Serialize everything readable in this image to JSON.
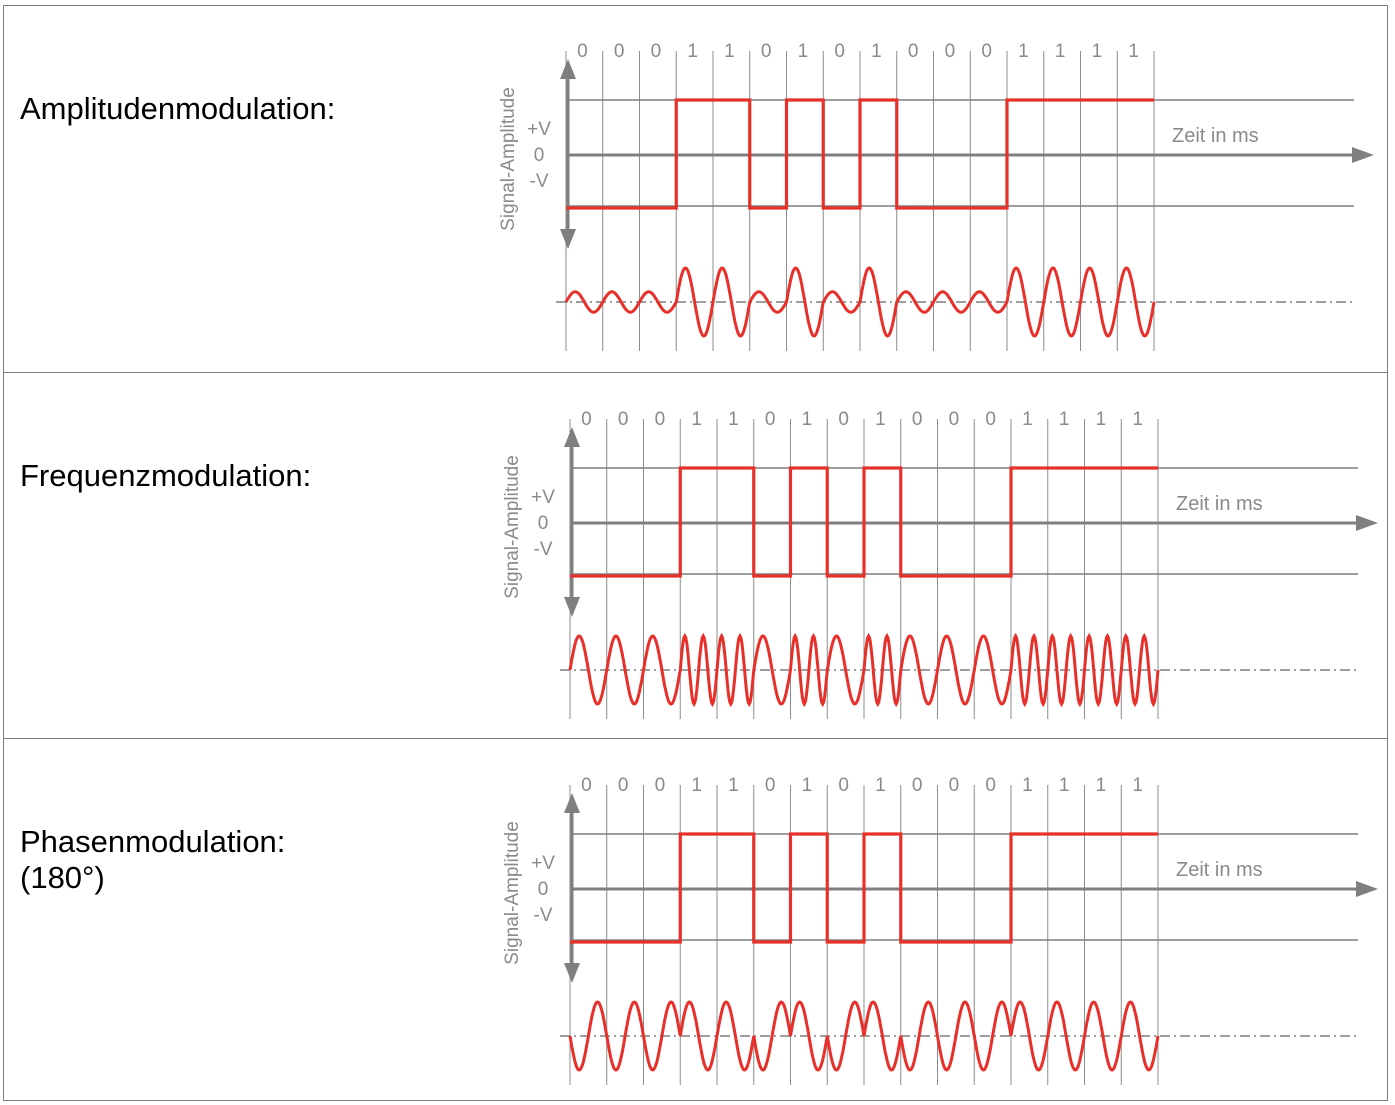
{
  "rows": [
    {
      "id": "am",
      "label": "Amplitudenmodulation:",
      "modulation": "amplitude"
    },
    {
      "id": "fm",
      "label": "Frequenzmodulation:",
      "modulation": "frequency"
    },
    {
      "id": "pm",
      "label": "Phasenmodulation:\n(180°)",
      "modulation": "phase"
    }
  ],
  "diagram": {
    "bits": [
      "0",
      "0",
      "0",
      "1",
      "1",
      "0",
      "1",
      "0",
      "1",
      "0",
      "0",
      "0",
      "1",
      "1",
      "1",
      "1"
    ],
    "y_axis_label": "Signal-Amplitude",
    "level_labels": [
      "+V",
      "0",
      "-V"
    ],
    "time_label": "Zeit in ms"
  },
  "colors": {
    "signal": "#e8302a",
    "axis": "#7f7f7f",
    "grid": "#8c8c8c",
    "label_text": "#8a8a8a"
  }
}
